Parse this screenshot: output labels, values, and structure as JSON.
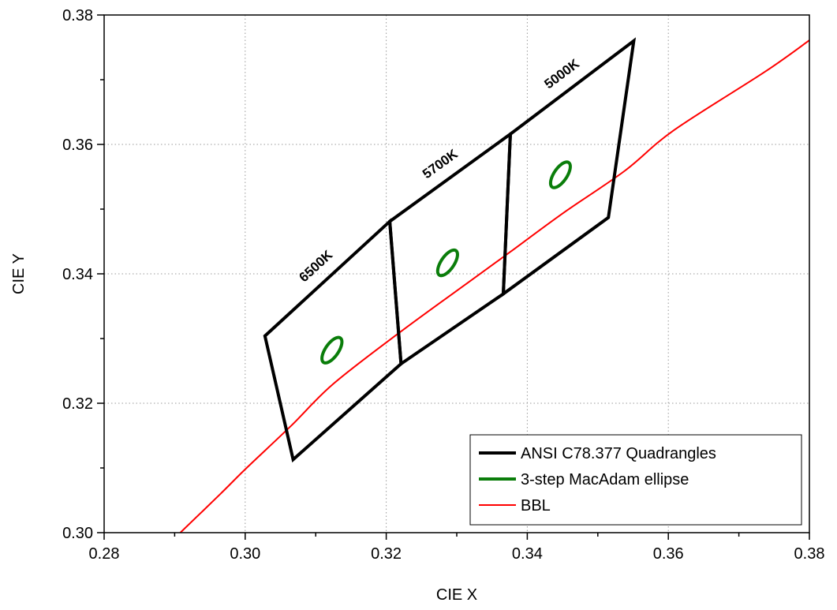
{
  "chart_data": {
    "type": "line",
    "xlabel": "CIE X",
    "ylabel": "CIE Y",
    "xlim": [
      0.28,
      0.38
    ],
    "ylim": [
      0.3,
      0.38
    ],
    "x_ticks": [
      "0.28",
      "0.30",
      "0.32",
      "0.34",
      "0.36",
      "0.38"
    ],
    "y_ticks": [
      "0.30",
      "0.32",
      "0.34",
      "0.36",
      "0.38"
    ],
    "grid": true,
    "legend_position": "bottom-right",
    "legend": [
      {
        "label": "ANSI C78.377 Quadrangles",
        "color": "#000000"
      },
      {
        "label": "3-step MacAdam ellipse",
        "color": "#0a7d0a"
      },
      {
        "label": "BBL",
        "color": "#ff0000"
      }
    ],
    "quadrangles": [
      {
        "label": "6500K",
        "points": [
          [
            0.3028,
            0.3304
          ],
          [
            0.3068,
            0.3113
          ],
          [
            0.3221,
            0.3261
          ],
          [
            0.3205,
            0.3481
          ]
        ]
      },
      {
        "label": "5700K",
        "points": [
          [
            0.3205,
            0.3481
          ],
          [
            0.3221,
            0.3261
          ],
          [
            0.3366,
            0.3369
          ],
          [
            0.3376,
            0.3616
          ]
        ]
      },
      {
        "label": "5000K",
        "points": [
          [
            0.3376,
            0.3616
          ],
          [
            0.3366,
            0.3369
          ],
          [
            0.3515,
            0.3487
          ],
          [
            0.3551,
            0.376
          ]
        ]
      }
    ],
    "ellipses": [
      {
        "center": [
          0.3123,
          0.3282
        ],
        "a": 0.00223,
        "b": 0.00095,
        "angle_deg": 58.6
      },
      {
        "center": [
          0.3287,
          0.3417
        ],
        "a": 0.00223,
        "b": 0.00095,
        "angle_deg": 59.1
      },
      {
        "center": [
          0.3447,
          0.3553
        ],
        "a": 0.00223,
        "b": 0.00095,
        "angle_deg": 59.4
      }
    ],
    "bbl": {
      "x": [
        0.2908,
        0.2965,
        0.3002,
        0.3065,
        0.3125,
        0.3221,
        0.3323,
        0.3376,
        0.3451,
        0.3538,
        0.3608,
        0.3738,
        0.3805
      ],
      "y": [
        0.3,
        0.306,
        0.31,
        0.3165,
        0.323,
        0.3311,
        0.3392,
        0.3434,
        0.3494,
        0.3559,
        0.3622,
        0.3713,
        0.3765
      ]
    }
  }
}
